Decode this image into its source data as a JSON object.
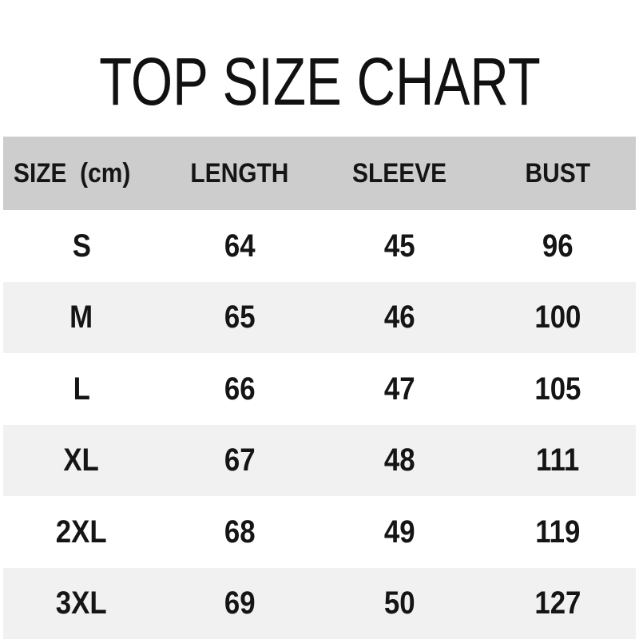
{
  "title": "TOP SIZE CHART",
  "colors": {
    "background": "#ffffff",
    "header_bg": "#cdcdcd",
    "stripe_bg": "#f1f1f1",
    "text": "#151515"
  },
  "table": {
    "headers": {
      "size": "SIZE  (cm)",
      "length": "LENGTH",
      "sleeve": "SLEEVE",
      "bust": "BUST"
    },
    "rows": [
      {
        "size": "S",
        "length": "64",
        "sleeve": "45",
        "bust": "96"
      },
      {
        "size": "M",
        "length": "65",
        "sleeve": "46",
        "bust": "100"
      },
      {
        "size": "L",
        "length": "66",
        "sleeve": "47",
        "bust": "105"
      },
      {
        "size": "XL",
        "length": "67",
        "sleeve": "48",
        "bust": "111"
      },
      {
        "size": "2XL",
        "length": "68",
        "sleeve": "49",
        "bust": "119"
      },
      {
        "size": "3XL",
        "length": "69",
        "sleeve": "50",
        "bust": "127"
      }
    ]
  },
  "chart_data": {
    "type": "table",
    "title": "TOP SIZE CHART",
    "unit": "cm",
    "columns": [
      "SIZE  (cm)",
      "LENGTH",
      "SLEEVE",
      "BUST"
    ],
    "rows": [
      [
        "S",
        64,
        45,
        96
      ],
      [
        "M",
        65,
        46,
        100
      ],
      [
        "L",
        66,
        47,
        105
      ],
      [
        "XL",
        67,
        48,
        111
      ],
      [
        "2XL",
        68,
        49,
        119
      ],
      [
        "3XL",
        69,
        50,
        127
      ]
    ],
    "layout": {
      "header_background": "#cdcdcd",
      "stripe_background": "#f1f1f1",
      "stripe_pattern": "rows M, XL, 3XL shaded; S, L, 2XL white",
      "column_alignment": "center",
      "grid_lines": "none"
    }
  }
}
